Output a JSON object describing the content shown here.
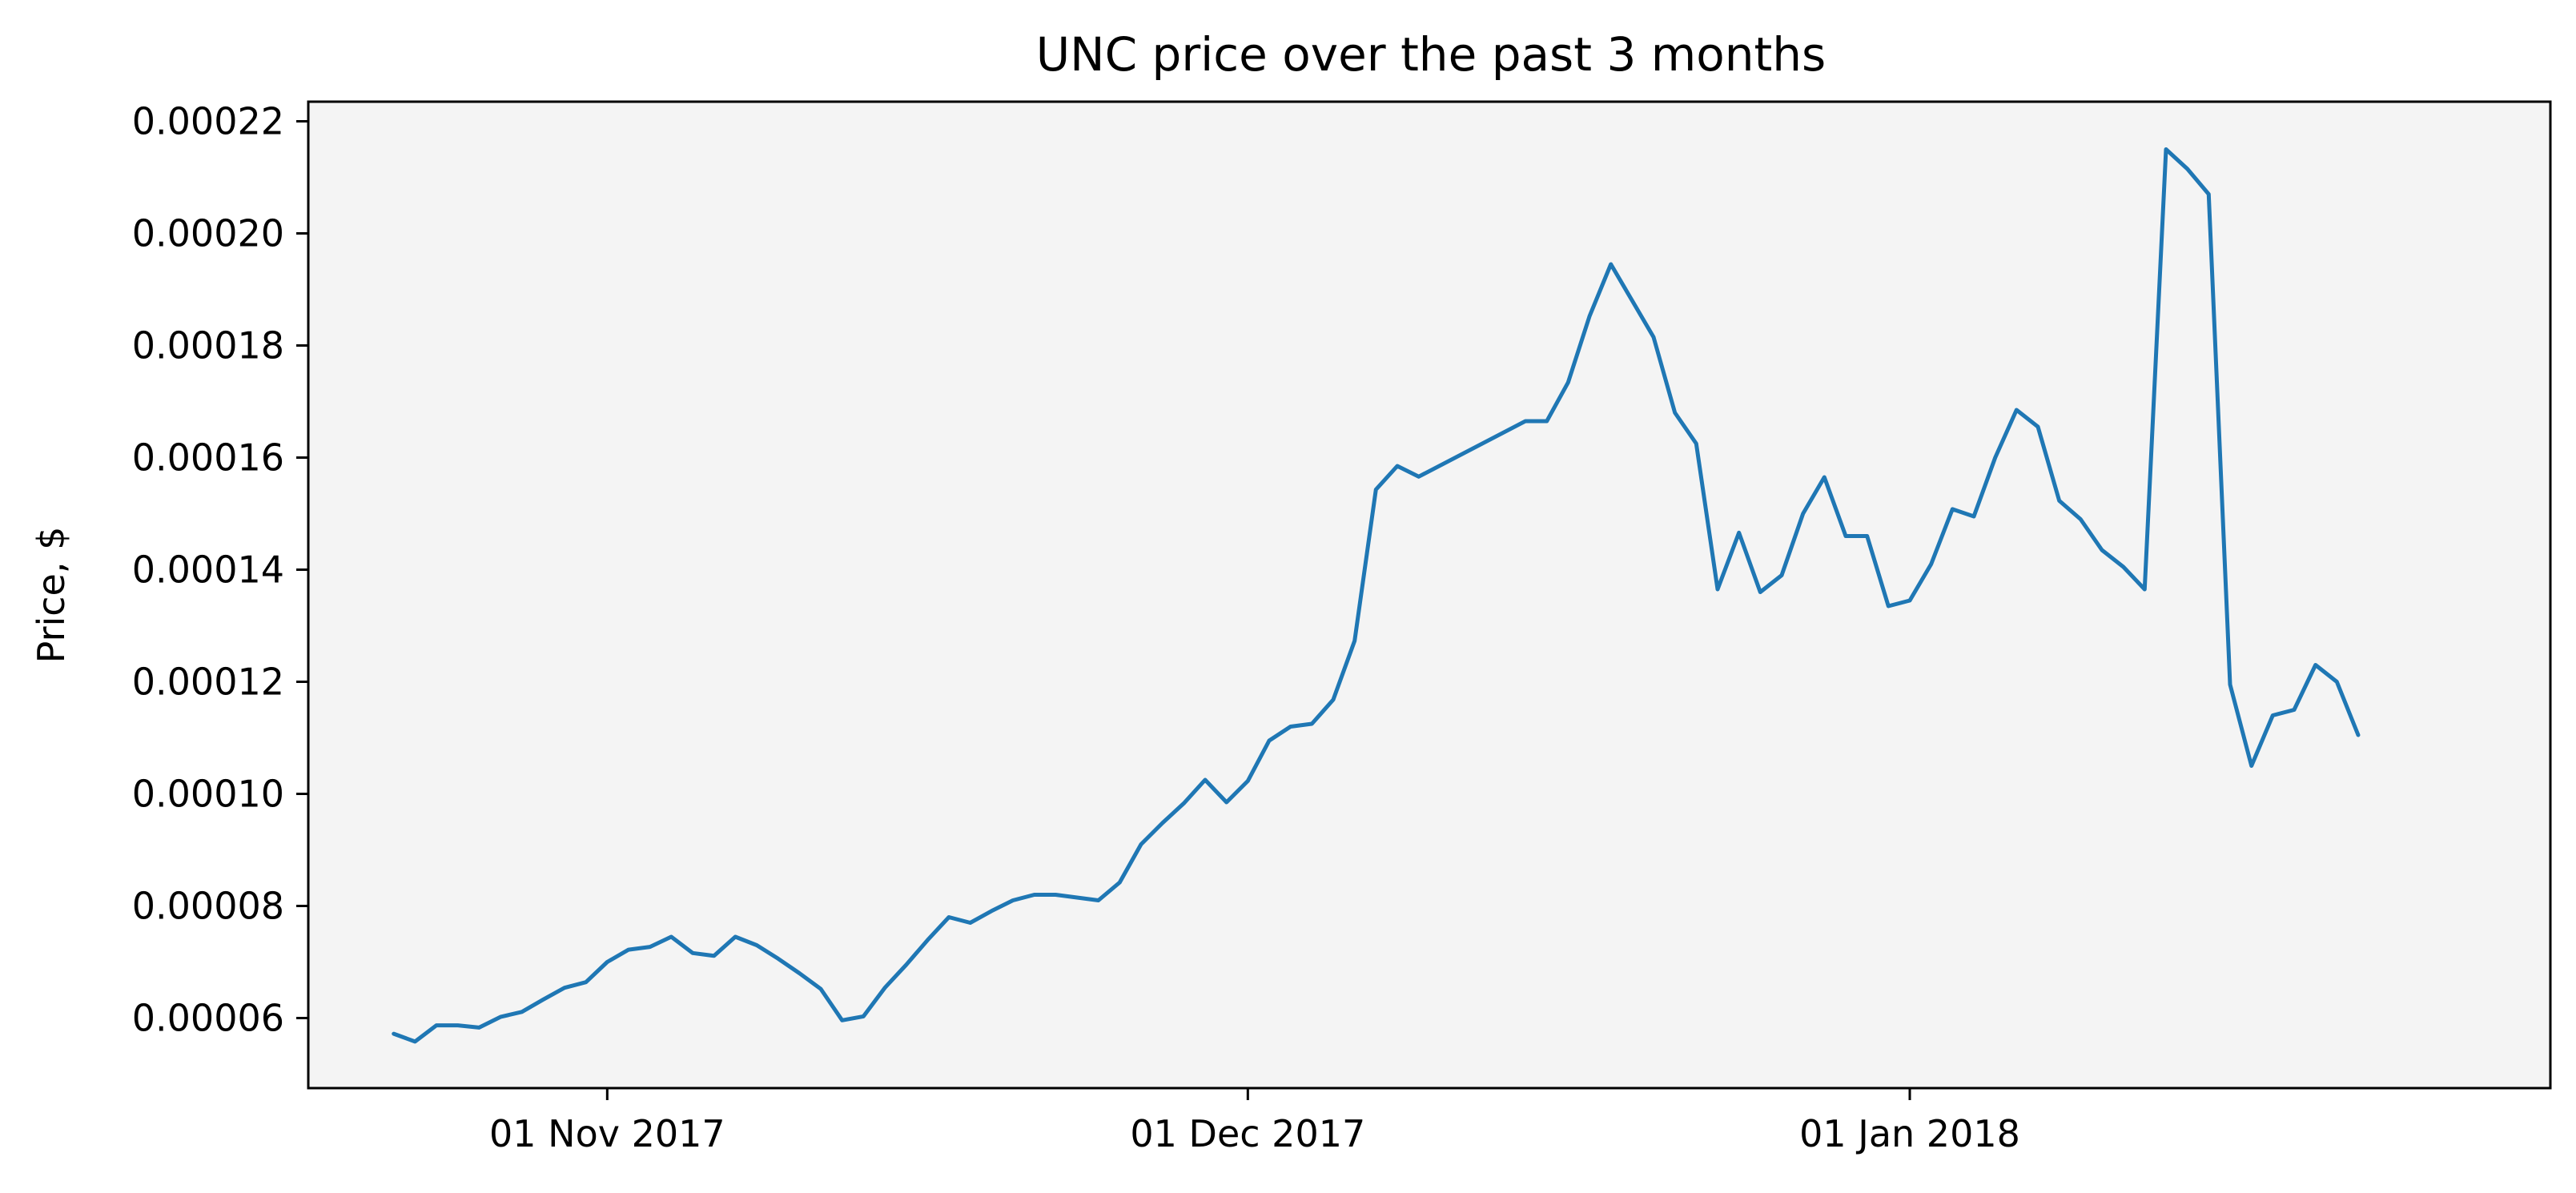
{
  "chart_data": {
    "type": "line",
    "title": "UNC price over the past 3 months",
    "xlabel": "",
    "ylabel": "Price, $",
    "grid": false,
    "colors": {
      "line": "#1f77b4",
      "plot_background": "#f4f4f4",
      "axes": "#000000"
    },
    "xlim": [
      "2017-10-18",
      "2018-01-31"
    ],
    "ylim": [
      4.75e-05,
      0.0002235
    ],
    "x_ticks": [
      {
        "date": "2017-11-01",
        "label": "01 Nov 2017"
      },
      {
        "date": "2017-12-01",
        "label": "01 Dec 2017"
      },
      {
        "date": "2018-01-01",
        "label": "01 Jan 2018"
      }
    ],
    "y_ticks": [
      {
        "value": 6e-05,
        "label": "0.00006"
      },
      {
        "value": 8e-05,
        "label": "0.00008"
      },
      {
        "value": 0.0001,
        "label": "0.00010"
      },
      {
        "value": 0.00012,
        "label": "0.00012"
      },
      {
        "value": 0.00014,
        "label": "0.00014"
      },
      {
        "value": 0.00016,
        "label": "0.00016"
      },
      {
        "value": 0.00018,
        "label": "0.00018"
      },
      {
        "value": 0.0002,
        "label": "0.00020"
      },
      {
        "value": 0.00022,
        "label": "0.00022"
      }
    ],
    "series": [
      {
        "points": [
          [
            "2017-10-22",
            5.72e-05
          ],
          [
            "2017-10-23",
            5.58e-05
          ],
          [
            "2017-10-24",
            5.87e-05
          ],
          [
            "2017-10-25",
            5.87e-05
          ],
          [
            "2017-10-26",
            5.83e-05
          ],
          [
            "2017-10-27",
            6.02e-05
          ],
          [
            "2017-10-28",
            6.11e-05
          ],
          [
            "2017-10-29",
            6.33e-05
          ],
          [
            "2017-10-30",
            6.54e-05
          ],
          [
            "2017-10-31",
            6.64e-05
          ],
          [
            "2017-11-01",
            7e-05
          ],
          [
            "2017-11-02",
            7.22e-05
          ],
          [
            "2017-11-03",
            7.27e-05
          ],
          [
            "2017-11-04",
            7.45e-05
          ],
          [
            "2017-11-05",
            7.16e-05
          ],
          [
            "2017-11-06",
            7.11e-05
          ],
          [
            "2017-11-07",
            7.45e-05
          ],
          [
            "2017-11-08",
            7.3e-05
          ],
          [
            "2017-11-09",
            7.06e-05
          ],
          [
            "2017-11-10",
            6.8e-05
          ],
          [
            "2017-11-11",
            6.52e-05
          ],
          [
            "2017-11-12",
            5.96e-05
          ],
          [
            "2017-11-13",
            6.03e-05
          ],
          [
            "2017-11-14",
            6.54e-05
          ],
          [
            "2017-11-15",
            6.95e-05
          ],
          [
            "2017-11-16",
            7.39e-05
          ],
          [
            "2017-11-17",
            7.8e-05
          ],
          [
            "2017-11-18",
            7.7e-05
          ],
          [
            "2017-11-19",
            7.91e-05
          ],
          [
            "2017-11-20",
            8.1e-05
          ],
          [
            "2017-11-21",
            8.2e-05
          ],
          [
            "2017-11-22",
            8.2e-05
          ],
          [
            "2017-11-24",
            8.1e-05
          ],
          [
            "2017-11-25",
            8.42e-05
          ],
          [
            "2017-11-26",
            9.1e-05
          ],
          [
            "2017-11-27",
            9.48e-05
          ],
          [
            "2017-11-28",
            9.83e-05
          ],
          [
            "2017-11-29",
            0.0001025
          ],
          [
            "2017-11-30",
            9.85e-05
          ],
          [
            "2017-12-01",
            0.0001023
          ],
          [
            "2017-12-02",
            0.0001095
          ],
          [
            "2017-12-03",
            0.000112
          ],
          [
            "2017-12-04",
            0.0001125
          ],
          [
            "2017-12-05",
            0.0001168
          ],
          [
            "2017-12-06",
            0.0001273
          ],
          [
            "2017-12-07",
            0.0001543
          ],
          [
            "2017-12-08",
            0.0001585
          ],
          [
            "2017-12-09",
            0.0001566
          ],
          [
            "2017-12-14",
            0.0001665
          ],
          [
            "2017-12-15",
            0.0001665
          ],
          [
            "2017-12-16",
            0.0001734
          ],
          [
            "2017-12-17",
            0.0001852
          ],
          [
            "2017-12-18",
            0.0001945
          ],
          [
            "2017-12-20",
            0.0001815
          ],
          [
            "2017-12-21",
            0.000168
          ],
          [
            "2017-12-22",
            0.0001625
          ],
          [
            "2017-12-23",
            0.0001365
          ],
          [
            "2017-12-24",
            0.0001466
          ],
          [
            "2017-12-25",
            0.000136
          ],
          [
            "2017-12-26",
            0.000139
          ],
          [
            "2017-12-27",
            0.00015
          ],
          [
            "2017-12-28",
            0.0001565
          ],
          [
            "2017-12-29",
            0.000146
          ],
          [
            "2017-12-30",
            0.000146
          ],
          [
            "2017-12-31",
            0.0001335
          ],
          [
            "2018-01-01",
            0.0001345
          ],
          [
            "2018-01-02",
            0.000141
          ],
          [
            "2018-01-03",
            0.0001508
          ],
          [
            "2018-01-04",
            0.0001495
          ],
          [
            "2018-01-05",
            0.00016
          ],
          [
            "2018-01-06",
            0.0001685
          ],
          [
            "2018-01-07",
            0.0001655
          ],
          [
            "2018-01-08",
            0.0001523
          ],
          [
            "2018-01-09",
            0.000149
          ],
          [
            "2018-01-10",
            0.0001435
          ],
          [
            "2018-01-11",
            0.0001405
          ],
          [
            "2018-01-12",
            0.0001365
          ],
          [
            "2018-01-13",
            0.000215
          ],
          [
            "2018-01-14",
            0.0002115
          ],
          [
            "2018-01-15",
            0.000207
          ],
          [
            "2018-01-16",
            0.0001195
          ],
          [
            "2018-01-17",
            0.000105
          ],
          [
            "2018-01-18",
            0.000114
          ],
          [
            "2018-01-19",
            0.000115
          ],
          [
            "2018-01-20",
            0.000123
          ],
          [
            "2018-01-21",
            0.00012
          ],
          [
            "2018-01-22",
            0.0001105
          ]
        ]
      }
    ]
  }
}
